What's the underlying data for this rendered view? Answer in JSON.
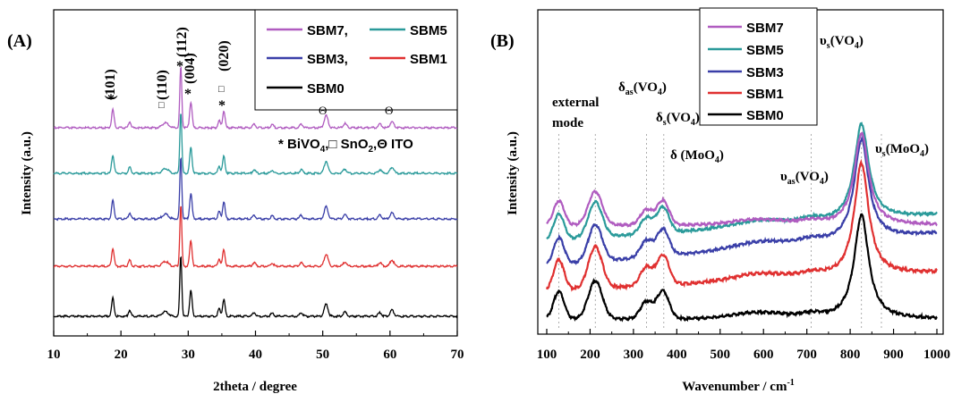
{
  "chart_data": [
    {
      "panel_label": "(A)",
      "type": "line",
      "xlabel": "2theta / degree",
      "ylabel": "Intensity (a.u.)",
      "xlim": [
        10,
        70
      ],
      "x_ticks": [
        "10",
        "20",
        "30",
        "40",
        "50",
        "60",
        "70"
      ],
      "legend": {
        "placement": "top-right",
        "entries": [
          {
            "label": "SBM7,",
            "color": "#b05cc0"
          },
          {
            "label": "SBM5",
            "color": "#2a9a9a"
          },
          {
            "label": "SBM3,",
            "color": "#3a3fa8"
          },
          {
            "label": "SBM1",
            "color": "#e03030"
          },
          {
            "label": "SBM0",
            "color": "#000000"
          }
        ]
      },
      "annotations": {
        "peak_labels": [
          "(101)",
          "(110)",
          "(112)",
          "(004)",
          "(020)"
        ],
        "markers": [
          "*",
          "□",
          "*",
          "*",
          "□",
          "*",
          "Θ",
          "Θ"
        ],
        "key": "* BiVO₄,□ SnO₂,Θ ITO",
        "key_parts": [
          "* BiVO",
          "4",
          ",□ SnO",
          "2",
          ",Θ ITO"
        ]
      },
      "peaks": [
        {
          "x": 18.8,
          "h": 0.3,
          "w": 0.18
        },
        {
          "x": 21.3,
          "h": 0.1,
          "w": 0.18
        },
        {
          "x": 26.6,
          "h": 0.08,
          "w": 0.45
        },
        {
          "x": 28.9,
          "h": 1.0,
          "w": 0.15
        },
        {
          "x": 30.4,
          "h": 0.42,
          "w": 0.18
        },
        {
          "x": 34.6,
          "h": 0.12,
          "w": 0.18
        },
        {
          "x": 35.3,
          "h": 0.28,
          "w": 0.18
        },
        {
          "x": 39.8,
          "h": 0.06,
          "w": 0.22
        },
        {
          "x": 42.5,
          "h": 0.05,
          "w": 0.22
        },
        {
          "x": 46.8,
          "h": 0.06,
          "w": 0.22
        },
        {
          "x": 50.5,
          "h": 0.2,
          "w": 0.28
        },
        {
          "x": 53.3,
          "h": 0.07,
          "w": 0.25
        },
        {
          "x": 58.5,
          "h": 0.06,
          "w": 0.25
        },
        {
          "x": 60.3,
          "h": 0.1,
          "w": 0.28
        }
      ],
      "series": [
        {
          "name": "SBM0",
          "color": "#000000",
          "offset": 0
        },
        {
          "name": "SBM1",
          "color": "#e03030",
          "offset": 1
        },
        {
          "name": "SBM3,",
          "color": "#3a3fa8",
          "offset": 2
        },
        {
          "name": "SBM5",
          "color": "#2a9a9a",
          "offset": 3
        },
        {
          "name": "SBM7,",
          "color": "#b05cc0",
          "offset": 4
        }
      ]
    },
    {
      "panel_label": "(B)",
      "type": "line",
      "xlabel": "Wavenumber / cm",
      "xlabel_sup": "-1",
      "ylabel": "Intensity (a.u.)",
      "xlim": [
        100,
        1000
      ],
      "x_ticks": [
        "100",
        "200",
        "300",
        "400",
        "500",
        "600",
        "700",
        "800",
        "900",
        "1000"
      ],
      "legend": {
        "placement": "top-center",
        "entries": [
          {
            "label": "SBM7",
            "color": "#b05cc0"
          },
          {
            "label": "SBM5",
            "color": "#2a9a9a"
          },
          {
            "label": "SBM3",
            "color": "#3a3fa8"
          },
          {
            "label": "SBM1",
            "color": "#e03030"
          },
          {
            "label": "SBM0",
            "color": "#000000"
          }
        ]
      },
      "annotations": {
        "external_mode": [
          "external",
          "mode"
        ],
        "delta_as_vo4": [
          "δ",
          "as",
          "(VO",
          "4",
          ")"
        ],
        "delta_s_vo4": [
          "δ",
          "s",
          "(VO",
          "4",
          ")"
        ],
        "delta_moo4": [
          "δ (MoO",
          "4",
          ")"
        ],
        "nu_as_vo4": [
          "υ",
          "as",
          "(VO",
          "4",
          ")"
        ],
        "nu_s_vo4": [
          "υ",
          "s",
          "(VO",
          "4",
          ")"
        ],
        "nu_s_moo4": [
          "υ",
          "s",
          "(MoO",
          "4",
          ")"
        ]
      },
      "band_positions": [
        128,
        212,
        330,
        370,
        710,
        826,
        872
      ],
      "peaks": [
        {
          "x": 128,
          "h": 0.45,
          "w": 12
        },
        {
          "x": 212,
          "h": 0.62,
          "w": 16
        },
        {
          "x": 330,
          "h": 0.28,
          "w": 14
        },
        {
          "x": 368,
          "h": 0.45,
          "w": 14
        },
        {
          "x": 590,
          "h": 0.1,
          "w": 60
        },
        {
          "x": 710,
          "h": 0.06,
          "w": 25
        },
        {
          "x": 826,
          "h": 1.7,
          "w": 20
        }
      ],
      "series": [
        {
          "name": "SBM0",
          "color": "#000000",
          "offset": 0
        },
        {
          "name": "SBM1",
          "color": "#e03030",
          "offset": 1
        },
        {
          "name": "SBM3",
          "color": "#3a3fa8",
          "offset": 2
        },
        {
          "name": "SBM5",
          "color": "#2a9a9a",
          "offset": 3
        },
        {
          "name": "SBM7",
          "color": "#b05cc0",
          "offset": 4
        }
      ]
    }
  ]
}
